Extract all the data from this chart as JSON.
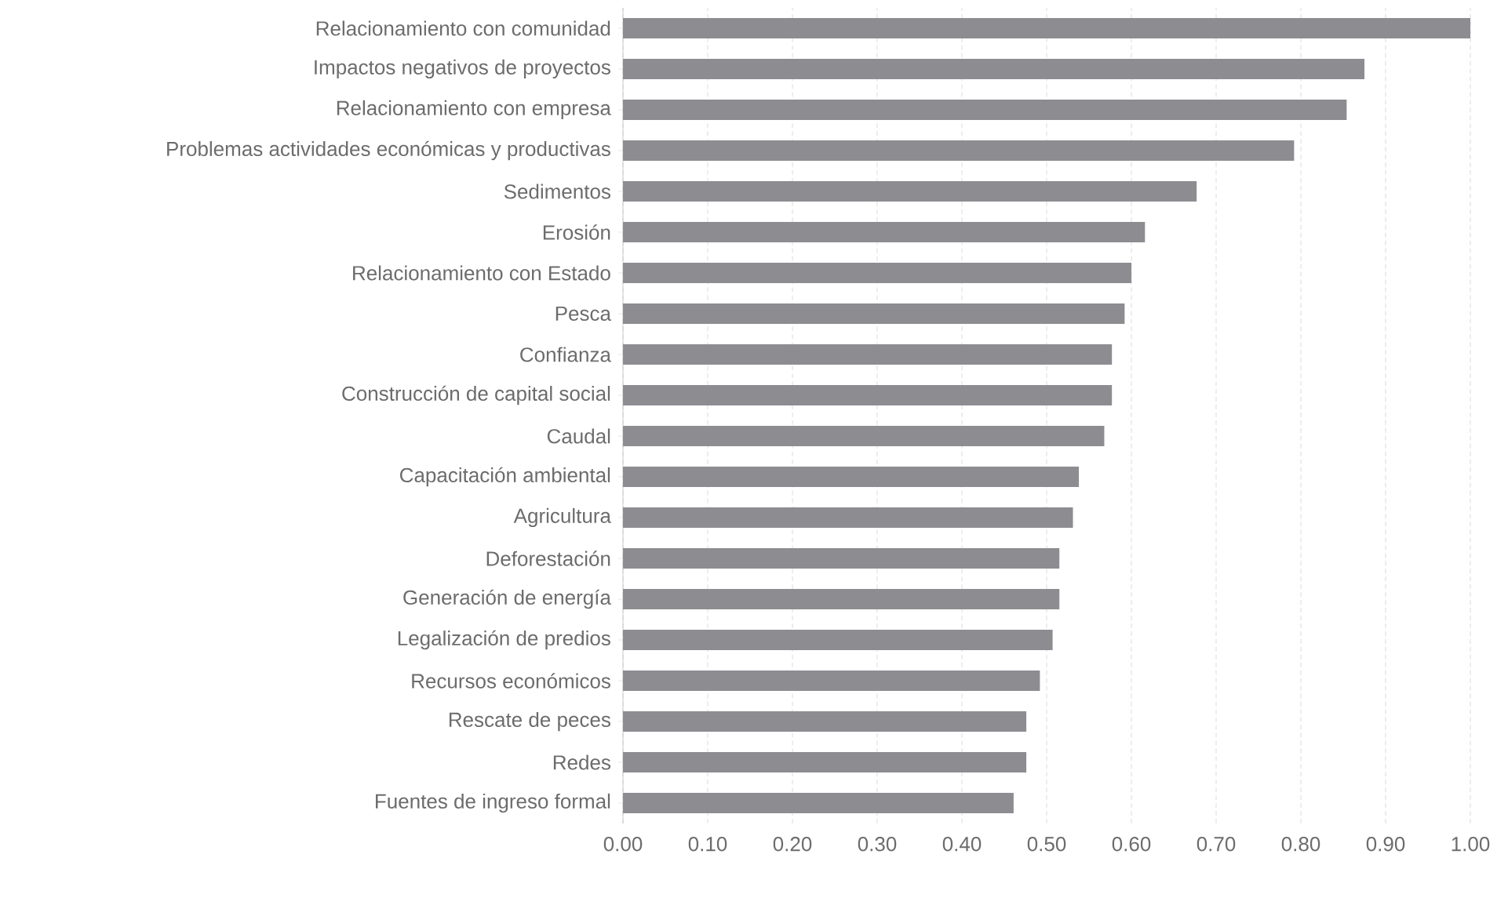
{
  "chart_data": {
    "type": "bar",
    "orientation": "horizontal",
    "categories": [
      "Relacionamiento con comunidad",
      "Impactos negativos de proyectos",
      "Relacionamiento con empresa",
      "Problemas actividades económicas y productivas",
      "Sedimentos",
      "Erosión",
      "Relacionamiento con Estado",
      "Pesca",
      "Confianza",
      "Construcción de capital social",
      "Caudal",
      "Capacitación ambiental",
      "Agricultura",
      "Deforestación",
      "Generación de energía",
      "Legalización de predios",
      "Recursos económicos",
      "Rescate de peces",
      "Redes",
      "Fuentes de ingreso formal"
    ],
    "values": [
      1.0,
      0.875,
      0.854,
      0.792,
      0.677,
      0.616,
      0.6,
      0.592,
      0.577,
      0.577,
      0.568,
      0.538,
      0.531,
      0.515,
      0.515,
      0.507,
      0.492,
      0.476,
      0.476,
      0.461
    ],
    "color": "#8c8c91",
    "xlim": [
      0,
      1
    ],
    "xticks": [
      {
        "value": 0,
        "label": "0.00"
      },
      {
        "value": 0.1,
        "label": "0.10"
      },
      {
        "value": 0.2,
        "label": "0.20"
      },
      {
        "value": 0.3,
        "label": "0.30"
      },
      {
        "value": 0.4,
        "label": "0.40"
      },
      {
        "value": 0.5,
        "label": "0.50"
      },
      {
        "value": 0.6,
        "label": "0.60"
      },
      {
        "value": 0.7,
        "label": "0.70"
      },
      {
        "value": 0.8,
        "label": "0.80"
      },
      {
        "value": 0.9,
        "label": "0.90"
      },
      {
        "value": 1,
        "label": "1.00"
      }
    ],
    "grid": "x"
  }
}
